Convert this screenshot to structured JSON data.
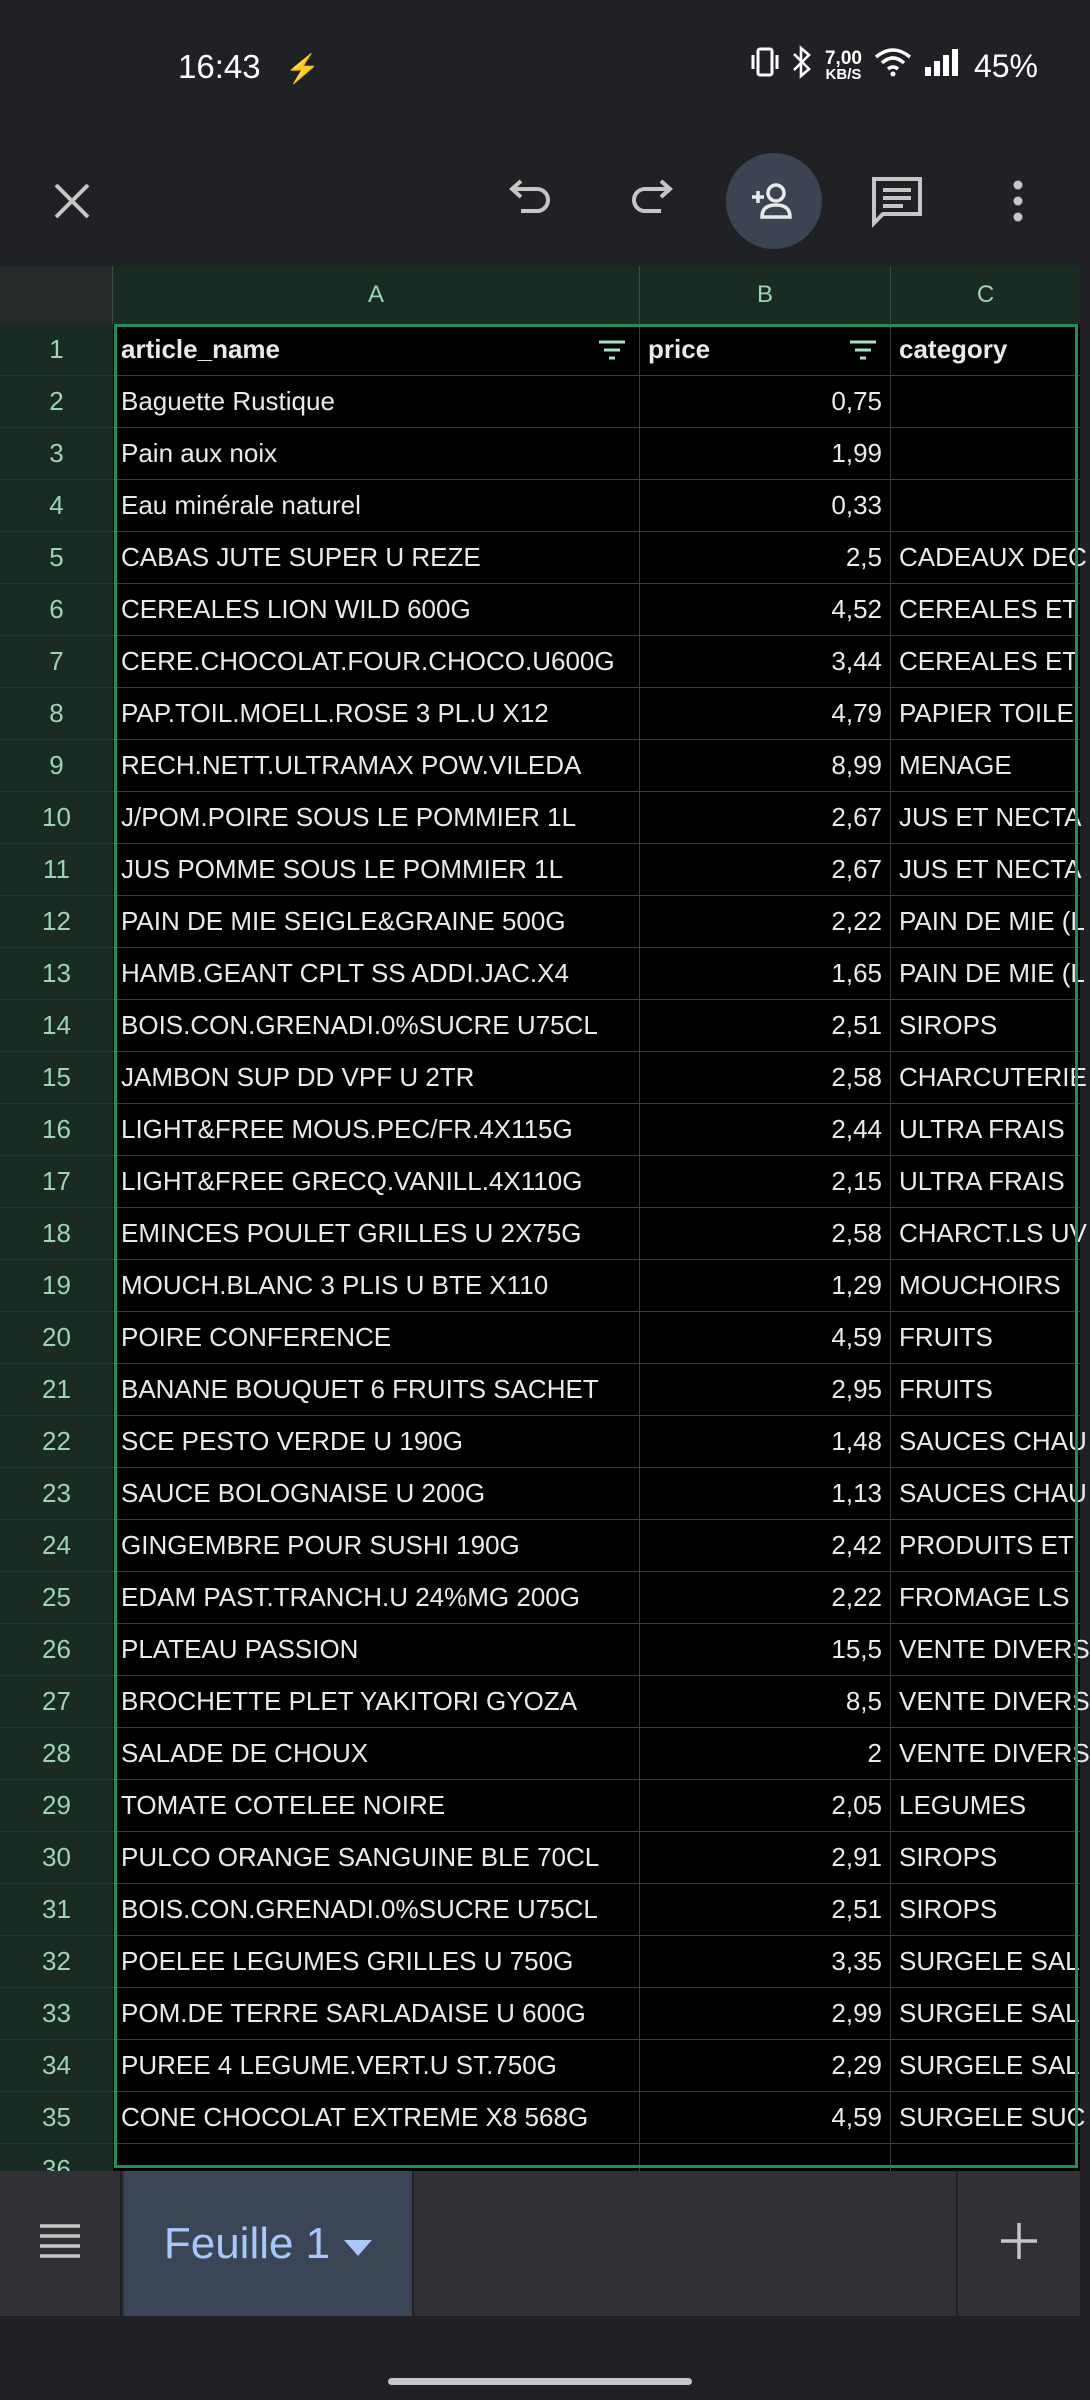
{
  "status_bar": {
    "time": "16:43",
    "net_speed_value": "7,00",
    "net_speed_unit": "KB/S",
    "battery": "45%"
  },
  "sheet": {
    "columns": [
      {
        "letter": "A"
      },
      {
        "letter": "B"
      },
      {
        "letter": "C"
      }
    ],
    "header_row_number": "1",
    "headers": [
      "article_name",
      "price",
      "category"
    ],
    "rows": [
      {
        "n": "2",
        "name": "Baguette Rustique",
        "price": "0,75",
        "category": ""
      },
      {
        "n": "3",
        "name": "Pain aux noix",
        "price": "1,99",
        "category": ""
      },
      {
        "n": "4",
        "name": "Eau minérale naturel",
        "price": "0,33",
        "category": ""
      },
      {
        "n": "5",
        "name": "CABAS JUTE SUPER U REZE",
        "price": "2,5",
        "category": "CADEAUX DEC"
      },
      {
        "n": "6",
        "name": "CEREALES LION WILD 600G",
        "price": "4,52",
        "category": "CEREALES ET"
      },
      {
        "n": "7",
        "name": "CERE.CHOCOLAT.FOUR.CHOCO.U600G",
        "price": "3,44",
        "category": "CEREALES ET"
      },
      {
        "n": "8",
        "name": "PAP.TOIL.MOELL.ROSE 3 PL.U X12",
        "price": "4,79",
        "category": "PAPIER TOILE"
      },
      {
        "n": "9",
        "name": "RECH.NETT.ULTRAMAX POW.VILEDA",
        "price": "8,99",
        "category": "MENAGE"
      },
      {
        "n": "10",
        "name": "J/POM.POIRE SOUS LE POMMIER 1L",
        "price": "2,67",
        "category": "JUS ET NECTA"
      },
      {
        "n": "11",
        "name": "JUS POMME SOUS LE POMMIER 1L",
        "price": "2,67",
        "category": "JUS ET NECTA"
      },
      {
        "n": "12",
        "name": "PAIN DE MIE SEIGLE&GRAINE 500G",
        "price": "2,22",
        "category": "PAIN DE MIE (L"
      },
      {
        "n": "13",
        "name": "HAMB.GEANT CPLT SS ADDI.JAC.X4",
        "price": "1,65",
        "category": "PAIN DE MIE (L"
      },
      {
        "n": "14",
        "name": "BOIS.CON.GRENADI.0%SUCRE U75CL",
        "price": "2,51",
        "category": "SIROPS"
      },
      {
        "n": "15",
        "name": "JAMBON SUP DD VPF U 2TR",
        "price": "2,58",
        "category": "CHARCUTERIE"
      },
      {
        "n": "16",
        "name": "LIGHT&FREE MOUS.PEC/FR.4X115G",
        "price": "2,44",
        "category": "ULTRA FRAIS"
      },
      {
        "n": "17",
        "name": "LIGHT&FREE GRECQ.VANILL.4X110G",
        "price": "2,15",
        "category": "ULTRA FRAIS"
      },
      {
        "n": "18",
        "name": "EMINCES POULET GRILLES U 2X75G",
        "price": "2,58",
        "category": "CHARCT.LS UV"
      },
      {
        "n": "19",
        "name": "MOUCH.BLANC 3 PLIS U BTE X110",
        "price": "1,29",
        "category": "MOUCHOIRS"
      },
      {
        "n": "20",
        "name": "POIRE CONFERENCE",
        "price": "4,59",
        "category": "FRUITS"
      },
      {
        "n": "21",
        "name": "BANANE BOUQUET 6 FRUITS SACHET",
        "price": "2,95",
        "category": "FRUITS"
      },
      {
        "n": "22",
        "name": "SCE PESTO VERDE U 190G",
        "price": "1,48",
        "category": "SAUCES CHAU"
      },
      {
        "n": "23",
        "name": "SAUCE BOLOGNAISE U 200G",
        "price": "1,13",
        "category": "SAUCES CHAU"
      },
      {
        "n": "24",
        "name": "GINGEMBRE POUR SUSHI 190G",
        "price": "2,42",
        "category": "PRODUITS ET"
      },
      {
        "n": "25",
        "name": "EDAM PAST.TRANCH.U 24%MG 200G",
        "price": "2,22",
        "category": "FROMAGE LS"
      },
      {
        "n": "26",
        "name": "PLATEAU PASSION",
        "price": "15,5",
        "category": "VENTE DIVERS"
      },
      {
        "n": "27",
        "name": "BROCHETTE PLET YAKITORI GYOZA",
        "price": "8,5",
        "category": "VENTE DIVERS"
      },
      {
        "n": "28",
        "name": "SALADE DE CHOUX",
        "price": "2",
        "category": "VENTE DIVERS"
      },
      {
        "n": "29",
        "name": "TOMATE COTELEE NOIRE",
        "price": "2,05",
        "category": "LEGUMES"
      },
      {
        "n": "30",
        "name": "PULCO ORANGE SANGUINE BLE 70CL",
        "price": "2,91",
        "category": "SIROPS"
      },
      {
        "n": "31",
        "name": "BOIS.CON.GRENADI.0%SUCRE U75CL",
        "price": "2,51",
        "category": "SIROPS"
      },
      {
        "n": "32",
        "name": "POELEE LEGUMES GRILLES U 750G",
        "price": "3,35",
        "category": "SURGELE SAL"
      },
      {
        "n": "33",
        "name": "POM.DE TERRE SARLADAISE U 600G",
        "price": "2,99",
        "category": "SURGELE SAL"
      },
      {
        "n": "34",
        "name": "PUREE 4 LEGUME.VERT.U ST.750G",
        "price": "2,29",
        "category": "SURGELE SAL"
      },
      {
        "n": "35",
        "name": "CONE CHOCOLAT EXTREME X8 568G",
        "price": "4,59",
        "category": "SURGELE SUC"
      },
      {
        "n": "36",
        "name": "",
        "price": "",
        "category": ""
      }
    ]
  },
  "bottom_bar": {
    "sheet_tab_label": "Feuille 1"
  },
  "icons": {
    "close": "close-icon",
    "undo": "undo-icon",
    "redo": "redo-icon",
    "share": "add-person-icon",
    "comments": "comment-icon",
    "more": "more-vert-icon",
    "filter": "filter-icon",
    "sheets_menu": "list-menu-icon",
    "tab_dropdown": "dropdown-arrow-icon",
    "add_sheet": "plus-icon"
  },
  "colors": {
    "accent_green": "#1e8e5a",
    "tab_blue": "#a8c7fa",
    "header_bg": "#1a2b24"
  }
}
